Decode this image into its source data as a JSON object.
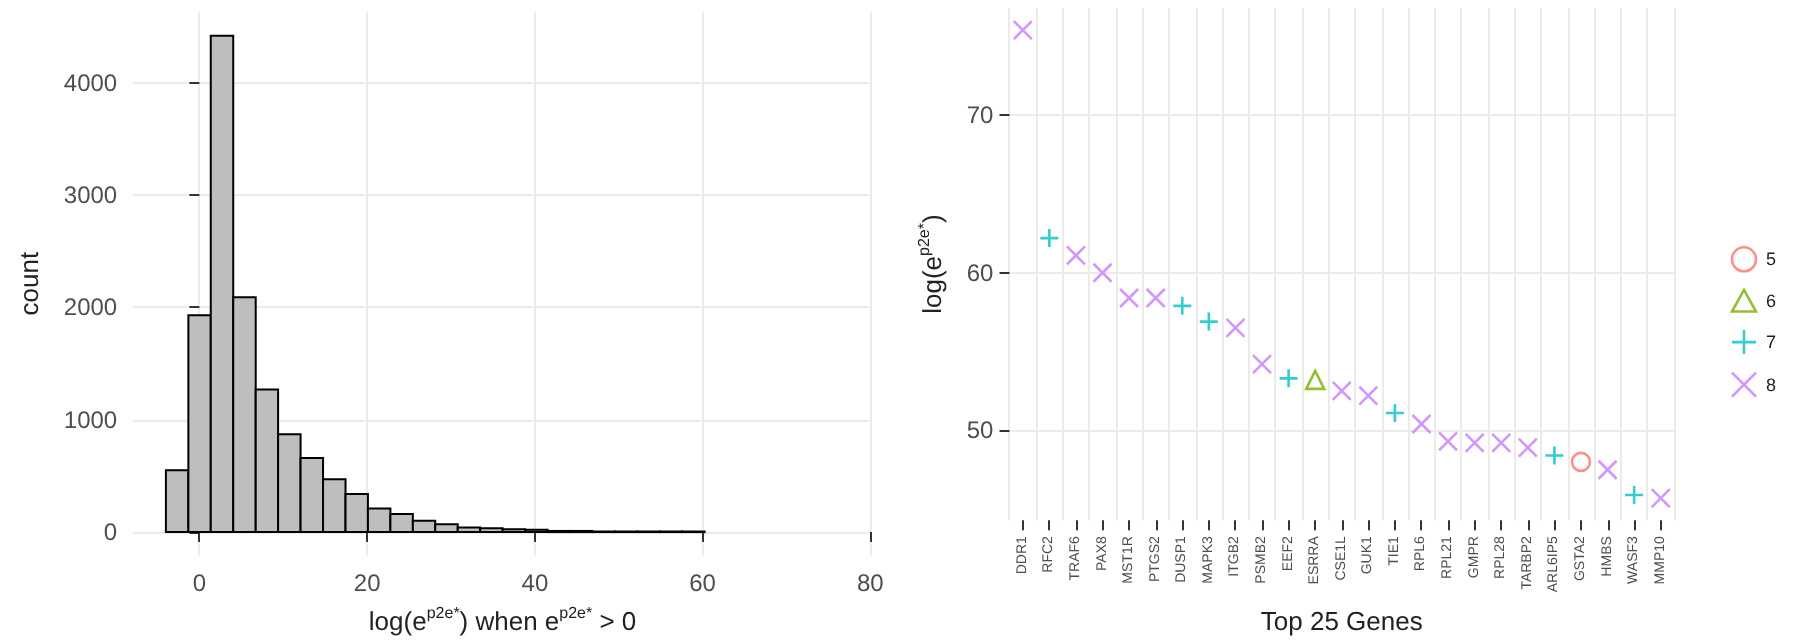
{
  "chart_data": [
    {
      "type": "histogram",
      "xlabel": "log(e$^{p2e*}$) when e$^{p2e*}$ > 0",
      "ylabel": "count",
      "color": "#bebebe",
      "bins": [
        -4,
        -1.32,
        1.35,
        4.03,
        6.71,
        9.38,
        12.06,
        14.74,
        17.42,
        20.09,
        22.77,
        25.45,
        28.12,
        30.8,
        33.48,
        36.15,
        38.83,
        41.51,
        44.18,
        46.86,
        49.54,
        52.21,
        54.89,
        57.57,
        60.24,
        62.92,
        65.6,
        68.27,
        70.95,
        73.63,
        76.3
      ],
      "values": [
        550,
        1930,
        4420,
        2090,
        1270,
        870,
        660,
        470,
        340,
        210,
        160,
        100,
        70,
        40,
        35,
        25,
        20,
        10,
        10,
        5,
        5,
        5,
        5,
        5,
        0,
        0,
        0,
        0,
        0,
        0
      ],
      "xlim": [
        -7.9,
        80.2
      ],
      "xticks": [
        0,
        20,
        40,
        60,
        80
      ],
      "ylim": [
        -206,
        4631
      ],
      "yticks": [
        0,
        1000,
        2000,
        3000,
        4000
      ],
      "grid": true
    },
    {
      "type": "scatter",
      "xlabel": "Top 25 Genes",
      "ylabel": "log(e$^{p2e*}$)",
      "legend": "right",
      "categories": [
        "DDR1",
        "RFC2",
        "TRAF6",
        "PAX8",
        "MST1R",
        "PTGS2",
        "DUSP1",
        "MAPK3",
        "ITGB2",
        "PSMB2",
        "EEF2",
        "ESRRA",
        "CSE1L",
        "GUK1",
        "TIE1",
        "RPL6",
        "RPL21",
        "GMPR",
        "RPL28",
        "TARBP2",
        "ARL6IP5",
        "GSTA2",
        "HMBS",
        "WASF3",
        "MMP10"
      ],
      "series": [
        {
          "name": "5",
          "color": "#f8766d",
          "marker": "circle",
          "values": [
            null,
            null,
            null,
            null,
            null,
            null,
            null,
            null,
            null,
            null,
            null,
            null,
            null,
            null,
            null,
            null,
            null,
            null,
            null,
            null,
            null,
            48.0,
            null,
            null,
            null
          ]
        },
        {
          "name": "6",
          "color": "#7cae00",
          "marker": "triangle",
          "values": [
            null,
            null,
            null,
            null,
            null,
            null,
            null,
            null,
            null,
            null,
            null,
            53.2,
            null,
            null,
            null,
            null,
            null,
            null,
            null,
            null,
            null,
            null,
            null,
            null,
            null
          ]
        },
        {
          "name": "7",
          "color": "#00bfc4",
          "marker": "plus",
          "values": [
            null,
            62.2,
            null,
            null,
            null,
            null,
            57.9,
            56.9,
            null,
            null,
            53.3,
            null,
            null,
            null,
            51.1,
            null,
            null,
            null,
            null,
            null,
            48.4,
            null,
            null,
            45.9,
            null
          ]
        },
        {
          "name": "8",
          "color": "#c77cff",
          "marker": "cross",
          "values": [
            75.4,
            null,
            61.1,
            60.0,
            58.4,
            58.4,
            null,
            null,
            56.5,
            54.2,
            null,
            null,
            52.5,
            52.2,
            null,
            50.4,
            49.3,
            49.2,
            49.2,
            48.9,
            null,
            null,
            47.5,
            null,
            45.7
          ]
        }
      ],
      "ylim": [
        44.3,
        76.8
      ],
      "yticks": [
        50,
        60,
        70
      ],
      "grid": true
    }
  ]
}
